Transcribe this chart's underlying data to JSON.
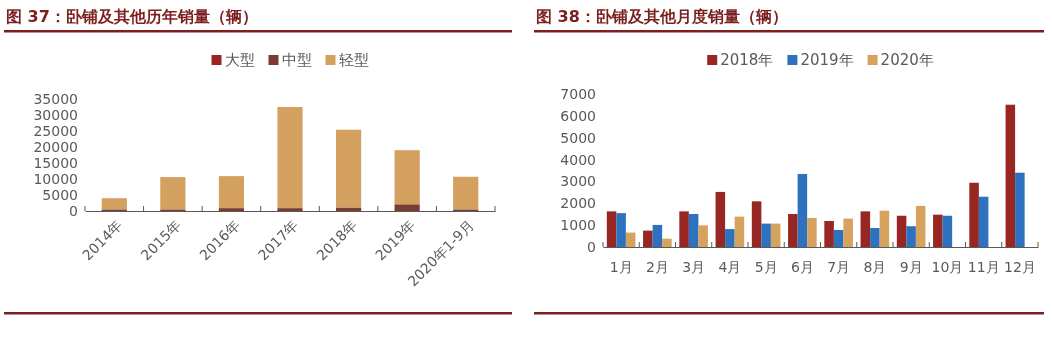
{
  "chart_data": [
    {
      "type": "bar",
      "title": "图 37：卧铺及其他历年销量（辆）",
      "categories": [
        "2014年",
        "2015年",
        "2016年",
        "2017年",
        "2018年",
        "2019年",
        "2020年1-9月"
      ],
      "stacked": true,
      "legend": "top",
      "ylim": [
        0,
        35000
      ],
      "yticks": [
        0,
        5000,
        10000,
        15000,
        20000,
        25000,
        30000,
        35000
      ],
      "series": [
        {
          "name": "大型",
          "color": "#9b2423",
          "values": [
            null,
            null,
            null,
            null,
            null,
            null,
            null
          ]
        },
        {
          "name": "中型",
          "color": "#7a3b33",
          "values": [
            500,
            500,
            900,
            900,
            1100,
            2100,
            500
          ]
        },
        {
          "name": "轻型",
          "color": "#d4a060",
          "values": [
            3500,
            10100,
            10000,
            31600,
            24300,
            16900,
            10200
          ]
        }
      ]
    },
    {
      "type": "bar",
      "title": "图 38：卧铺及其他月度销量（辆）",
      "categories": [
        "1月",
        "2月",
        "3月",
        "4月",
        "5月",
        "6月",
        "7月",
        "8月",
        "9月",
        "10月",
        "11月",
        "12月"
      ],
      "legend": "top",
      "ylim": [
        0,
        7000
      ],
      "yticks": [
        0,
        1000,
        2000,
        3000,
        4000,
        5000,
        6000,
        7000
      ],
      "series": [
        {
          "name": "2018年",
          "color": "#982622",
          "values": [
            1630,
            750,
            1630,
            2520,
            2090,
            1510,
            1190,
            1630,
            1430,
            1480,
            2940,
            6510
          ]
        },
        {
          "name": "2019年",
          "color": "#2e72bf",
          "values": [
            1550,
            1010,
            1510,
            820,
            1070,
            3340,
            780,
            870,
            950,
            1430,
            2300,
            3400
          ]
        },
        {
          "name": "2020年",
          "color": "#d6a35f",
          "values": [
            660,
            380,
            990,
            1390,
            1070,
            1330,
            1300,
            1660,
            1880,
            null,
            null,
            null
          ]
        }
      ]
    }
  ]
}
